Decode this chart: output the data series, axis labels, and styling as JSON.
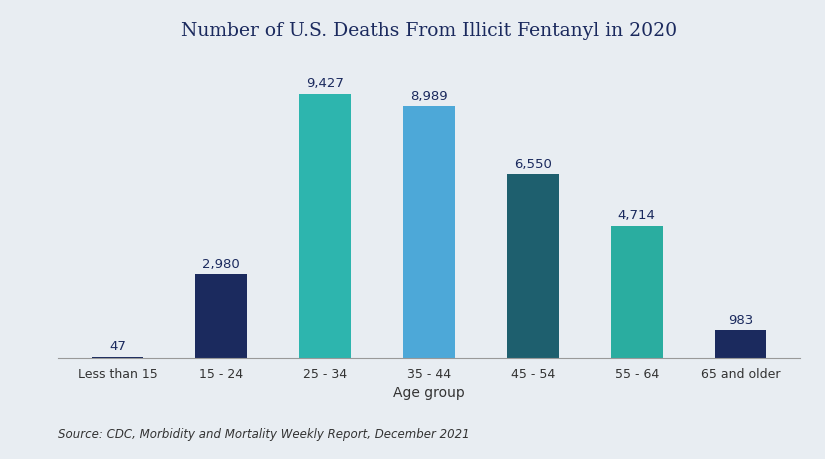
{
  "title": "Number of U.S. Deaths From Illicit Fentanyl in 2020",
  "xlabel": "Age group",
  "categories": [
    "Less than 15",
    "15 - 24",
    "25 - 34",
    "35 - 44",
    "45 - 54",
    "55 - 64",
    "65 and older"
  ],
  "values": [
    47,
    2980,
    9427,
    8989,
    6550,
    4714,
    983
  ],
  "bar_colors": [
    "#1b2a5e",
    "#1b2a5e",
    "#2db5ae",
    "#4da8d8",
    "#1e5f6e",
    "#2aada0",
    "#1b2a5e"
  ],
  "background_color": "#e8edf2",
  "title_color": "#1b2a5e",
  "label_color": "#1b2a5e",
  "axis_label_color": "#333333",
  "source_text": "Source: CDC, Morbidity and Mortality Weekly Report, December 2021",
  "ylim": [
    0,
    10800
  ],
  "bar_width": 0.5,
  "title_fontsize": 13.5,
  "value_fontsize": 9.5,
  "tick_fontsize": 9,
  "source_fontsize": 8.5,
  "xlabel_fontsize": 10
}
